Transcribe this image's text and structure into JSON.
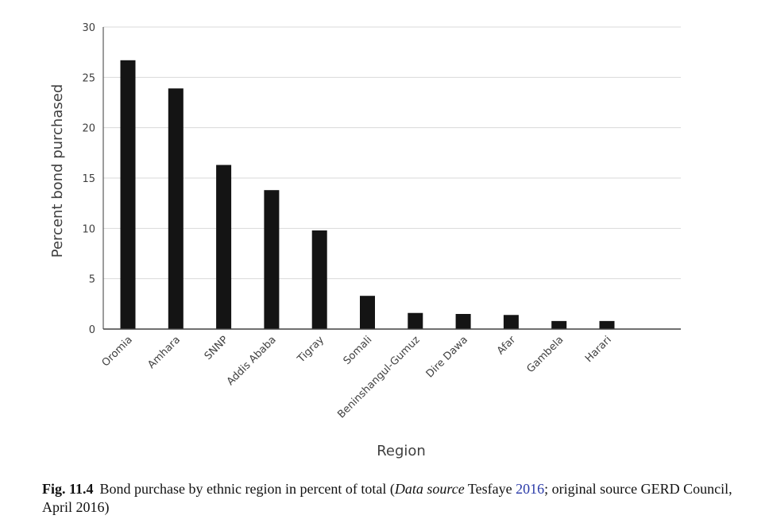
{
  "chart_data": {
    "type": "bar",
    "categories": [
      "Oromia",
      "Amhara",
      "SNNP",
      "Addis Ababa",
      "Tigray",
      "Somali",
      "Beninshangul-Gumuz",
      "Dire Dawa",
      "Afar",
      "Gambela",
      "Harari"
    ],
    "values": [
      26.7,
      23.9,
      16.3,
      13.8,
      9.8,
      3.3,
      1.6,
      1.5,
      1.4,
      0.8,
      0.8
    ],
    "xlabel": "Region",
    "ylabel": "Percent bond purchased",
    "ylim": [
      0,
      30
    ],
    "yticks": [
      0,
      5,
      10,
      15,
      20,
      25,
      30
    ],
    "grid": true,
    "bar_color": "#141414"
  },
  "caption": {
    "label": "Fig. 11.4",
    "text_1": "Bond purchase by ethnic region in percent of total (",
    "italic_1": "Data source",
    "text_2": " Tesfaye ",
    "link_1": "2016",
    "text_3": "; original source GERD Council, April 2016)"
  }
}
